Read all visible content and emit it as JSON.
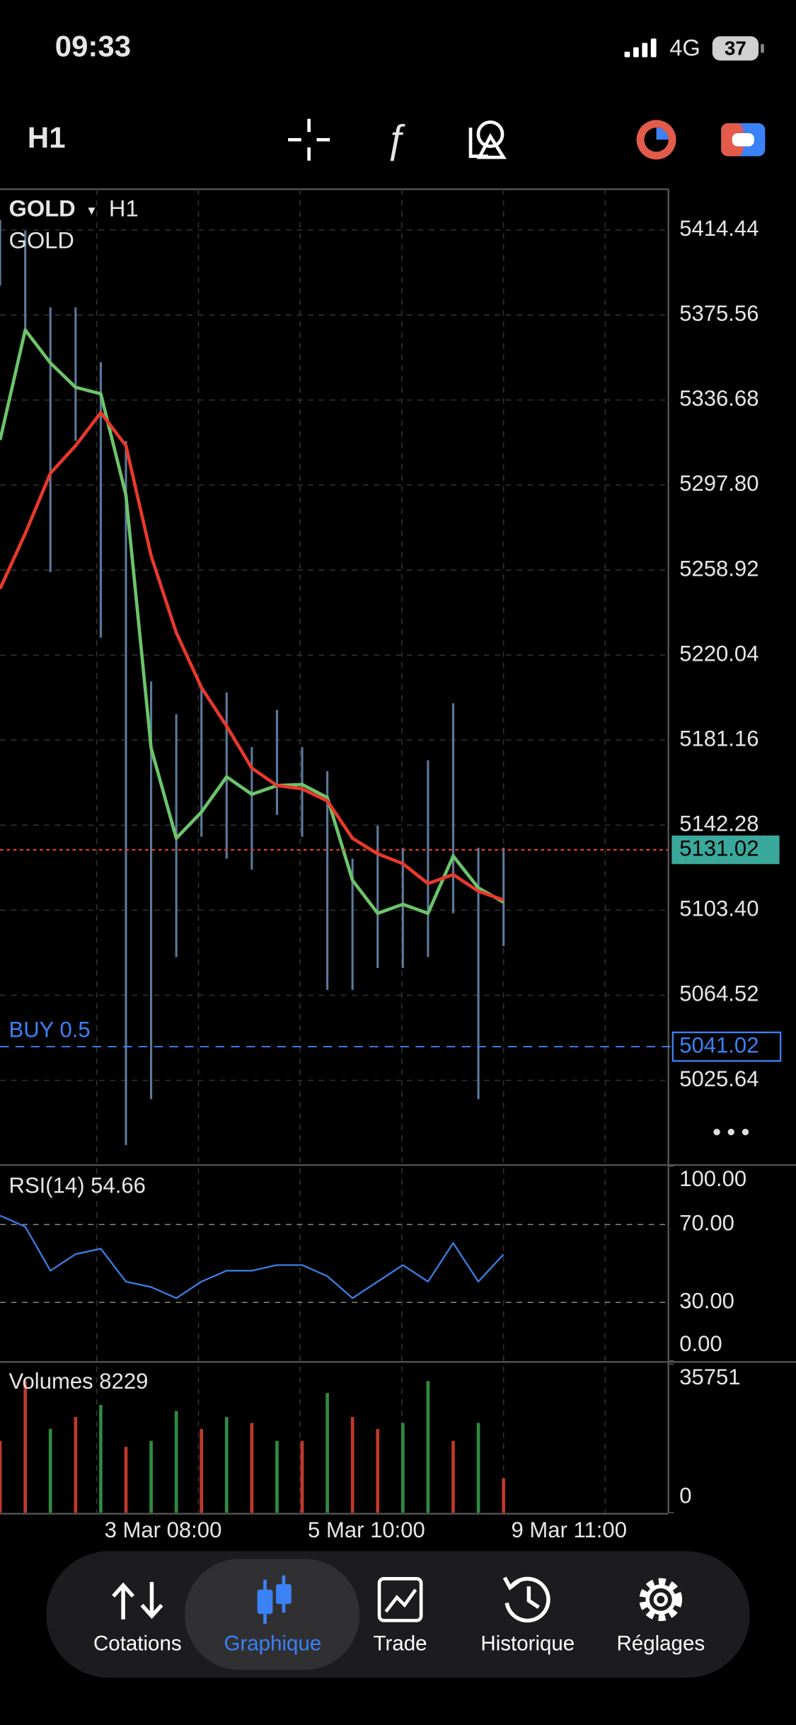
{
  "status_bar": {
    "time": "09:33",
    "network": "4G",
    "battery": "37"
  },
  "toolbar": {
    "timeframe": "H1"
  },
  "chart_data": [
    {
      "type": "line",
      "title": "GOLD",
      "timeframe": "H1",
      "subtitle": "GOLD",
      "x": [
        0,
        5,
        10,
        15,
        20,
        25,
        30,
        35,
        40,
        45,
        50,
        55,
        60,
        65,
        70,
        75,
        80,
        85,
        90,
        95,
        100
      ],
      "xlim": [
        0,
        132.75
      ],
      "xticks": [
        {
          "value": 19.2,
          "label": "3 Mar 08:00"
        },
        {
          "value": 59.6,
          "label": "5 Mar 10:00"
        },
        {
          "value": 100,
          "label": "9 Mar 11:00"
        }
      ],
      "ylim": [
        4987.41,
        5433.05
      ],
      "yticks": [
        5414.44,
        5375.56,
        5336.68,
        {
          "value": 5297.8,
          "label": "5297.80"
        },
        5258.92,
        5220.04,
        5181.16,
        5142.28,
        {
          "value": 5103.4,
          "label": "5103.40"
        },
        5064.52,
        5025.64
      ],
      "grid": true,
      "ranges": {
        "color": "#5b7a9b",
        "high": [
          5419,
          5414,
          5379,
          5379,
          5354,
          5318,
          5208,
          5193,
          5205,
          5203,
          5178,
          5195,
          5178,
          5167,
          5127,
          5142,
          5132,
          5172,
          5198,
          5132,
          5132
        ],
        "low": [
          5389,
          5369,
          5258,
          5318,
          5228,
          4996,
          5017,
          5082,
          5137,
          5127,
          5122,
          5147,
          5137,
          5067,
          5067,
          5077,
          5077,
          5082,
          5102,
          5017,
          5087
        ]
      },
      "series": [
        {
          "color": "#6cc46a",
          "values": [
            5318.4,
            5368.7,
            5353.6,
            5342.5,
            5339.5,
            5293.2,
            5177.5,
            5136.3,
            5148.3,
            5164.4,
            5156.4,
            5160.4,
            5160.9,
            5154.9,
            5117.1,
            5102.0,
            5106.1,
            5102.0,
            5128.2,
            5113.6,
            5107.1
          ]
        },
        {
          "color": "#e8392b",
          "values": [
            5250.4,
            5275.6,
            5303.2,
            5315.8,
            5330.9,
            5315.8,
            5265.5,
            5230.3,
            5205.2,
            5187.6,
            5168.4,
            5160.4,
            5158.9,
            5153.4,
            5136.3,
            5129.2,
            5124.7,
            5115.6,
            5119.7,
            5112.1,
            5108.1
          ]
        }
      ],
      "last_price": 5131.02,
      "order": {
        "label": "BUY 0.5",
        "value": 5041.02
      }
    },
    {
      "type": "line",
      "title": "RSI(14) 54.66",
      "x": [
        0,
        5,
        10,
        15,
        20,
        25,
        30,
        35,
        40,
        45,
        50,
        55,
        60,
        65,
        70,
        75,
        80,
        85,
        90,
        95,
        100
      ],
      "xlim": [
        0,
        132.75
      ],
      "ylim": [
        0,
        100
      ],
      "yticks": [
        {
          "value": 100,
          "label": "100.00"
        },
        {
          "value": 70,
          "label": "70.00"
        },
        {
          "value": 30,
          "label": "30.00"
        },
        {
          "value": 0,
          "label": "0.00"
        }
      ],
      "series": [
        {
          "color": "#3b7de0",
          "values": [
            74.6,
            68.9,
            46.3,
            54.8,
            57.6,
            40.7,
            37.9,
            32.2,
            40.7,
            46.3,
            46.3,
            49.2,
            49.2,
            43.5,
            32.2,
            40.7,
            49.2,
            40.7,
            60.5,
            40.7,
            54.66
          ]
        }
      ]
    },
    {
      "type": "bar",
      "title": "Volumes 8229",
      "x": [
        0,
        5,
        10,
        15,
        20,
        25,
        30,
        35,
        40,
        45,
        50,
        55,
        60,
        65,
        70,
        75,
        80,
        85,
        90,
        95,
        100
      ],
      "xlim": [
        0,
        132.75
      ],
      "ylim": [
        0,
        35751
      ],
      "yticks": [
        35751,
        0
      ],
      "values": [
        17280,
        31680,
        20160,
        23040,
        25920,
        15840,
        17280,
        24480,
        20160,
        23040,
        21600,
        17280,
        17280,
        28800,
        23040,
        20160,
        21600,
        31680,
        17280,
        21600,
        8229
      ],
      "colors": [
        "#c0392b",
        "#c0392b",
        "#2e8b3e",
        "#c0392b",
        "#2e8b3e",
        "#c0392b",
        "#2e8b3e",
        "#2e8b3e",
        "#c0392b",
        "#2e8b3e",
        "#c0392b",
        "#2e8b3e",
        "#c0392b",
        "#2e8b3e",
        "#c0392b",
        "#c0392b",
        "#2e8b3e",
        "#2e8b3e",
        "#c0392b",
        "#2e8b3e",
        "#c0392b"
      ]
    }
  ],
  "tab_bar": {
    "items": [
      "Cotations",
      "Graphique",
      "Trade",
      "Historique",
      "Réglages"
    ],
    "active": 1
  }
}
